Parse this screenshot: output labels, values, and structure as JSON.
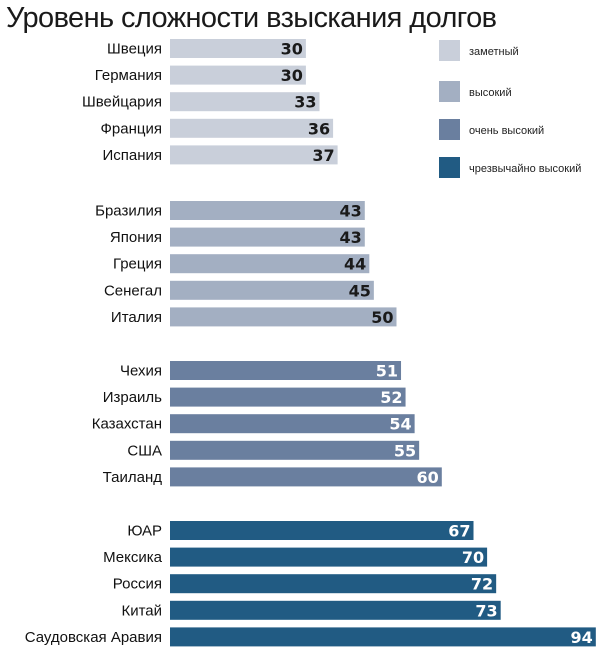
{
  "chart_data": {
    "type": "bar",
    "orientation": "horizontal",
    "title": "Уровень сложности взыскания долгов",
    "xlabel": "",
    "ylabel": "",
    "xlim": [
      0,
      94
    ],
    "grid": false,
    "legend_position": "top-right",
    "legend": [
      {
        "label": "заметный",
        "color": "#c9cfda"
      },
      {
        "label": "высокий",
        "color": "#a3afc2"
      },
      {
        "label": "очень высокий",
        "color": "#6a7f9f"
      },
      {
        "label": "чрезвычайно высокий",
        "color": "#215b83"
      }
    ],
    "groups": [
      {
        "level": "заметный",
        "color": "#c9cfda",
        "label_color": "#1a1a1a",
        "bars": [
          {
            "category": "Швеция",
            "value": 30
          },
          {
            "category": "Германия",
            "value": 30
          },
          {
            "category": "Швейцария",
            "value": 33
          },
          {
            "category": "Франция",
            "value": 36
          },
          {
            "category": "Испания",
            "value": 37
          }
        ]
      },
      {
        "level": "высокий",
        "color": "#a3afc2",
        "label_color": "#1a1a1a",
        "bars": [
          {
            "category": "Бразилия",
            "value": 43
          },
          {
            "category": "Япония",
            "value": 43
          },
          {
            "category": "Греция",
            "value": 44
          },
          {
            "category": "Сенегал",
            "value": 45
          },
          {
            "category": "Италия",
            "value": 50
          }
        ]
      },
      {
        "level": "очень высокий",
        "color": "#6a7f9f",
        "label_color": "#ffffff",
        "bars": [
          {
            "category": "Чехия",
            "value": 51
          },
          {
            "category": "Израиль",
            "value": 52
          },
          {
            "category": "Казахстан",
            "value": 54
          },
          {
            "category": "США",
            "value": 55
          },
          {
            "category": "Таиланд",
            "value": 60
          }
        ]
      },
      {
        "level": "чрезвычайно высокий",
        "color": "#215b83",
        "label_color": "#ffffff",
        "bars": [
          {
            "category": "ЮАР",
            "value": 67
          },
          {
            "category": "Мексика",
            "value": 70
          },
          {
            "category": "Россия",
            "value": 72
          },
          {
            "category": "Китай",
            "value": 73
          },
          {
            "category": "Саудовская Аравия",
            "value": 94
          }
        ]
      }
    ]
  }
}
